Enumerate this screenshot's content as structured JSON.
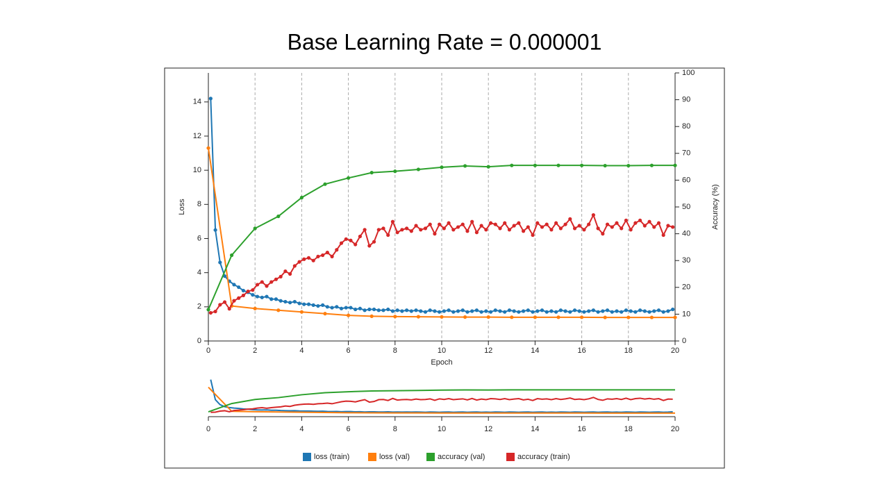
{
  "chart_data": {
    "type": "line",
    "title": "Base Learning Rate = 0.000001",
    "xlabel": "Epoch",
    "ylabel": "Loss",
    "y2label": "Accuracy (%)",
    "xlim": [
      0,
      20
    ],
    "xticks": [
      0,
      2,
      4,
      6,
      8,
      10,
      12,
      14,
      16,
      18,
      20
    ],
    "ylim": [
      0,
      15.7
    ],
    "yticks": [
      0,
      2,
      4,
      6,
      8,
      10,
      12,
      14
    ],
    "y2lim": [
      0,
      100
    ],
    "y2ticks": [
      0,
      10,
      20,
      30,
      40,
      50,
      60,
      70,
      80,
      90,
      100
    ],
    "grid": "x-dashed",
    "legend": "bottom",
    "series": [
      {
        "name": "loss (train)",
        "color": "#1f77b4",
        "x": [
          0.1,
          0.3,
          0.5,
          0.7,
          0.9,
          1.1,
          1.3,
          1.5,
          1.7,
          1.9,
          2.1,
          2.3,
          2.5,
          2.7,
          2.9,
          3.1,
          3.3,
          3.5,
          3.7,
          3.9,
          4.1,
          4.3,
          4.5,
          4.7,
          4.9,
          5.1,
          5.3,
          5.5,
          5.7,
          5.9,
          6.1,
          6.3,
          6.5,
          6.7,
          6.9,
          7.1,
          7.3,
          7.5,
          7.7,
          7.9,
          8.1,
          8.3,
          8.5,
          8.7,
          8.9,
          9.1,
          9.3,
          9.5,
          9.7,
          9.9,
          10.1,
          10.3,
          10.5,
          10.7,
          10.9,
          11.1,
          11.3,
          11.5,
          11.7,
          11.9,
          12.1,
          12.3,
          12.5,
          12.7,
          12.9,
          13.1,
          13.3,
          13.5,
          13.7,
          13.9,
          14.1,
          14.3,
          14.5,
          14.7,
          14.9,
          15.1,
          15.3,
          15.5,
          15.7,
          15.9,
          16.1,
          16.3,
          16.5,
          16.7,
          16.9,
          17.1,
          17.3,
          17.5,
          17.7,
          17.9,
          18.1,
          18.3,
          18.5,
          18.7,
          18.9,
          19.1,
          19.3,
          19.5,
          19.7,
          19.9
        ],
        "values": [
          14.2,
          6.5,
          4.6,
          3.8,
          3.5,
          3.3,
          3.15,
          2.95,
          2.85,
          2.7,
          2.6,
          2.55,
          2.6,
          2.45,
          2.45,
          2.35,
          2.3,
          2.25,
          2.3,
          2.2,
          2.15,
          2.15,
          2.1,
          2.05,
          2.1,
          2.0,
          1.95,
          2.0,
          1.9,
          1.95,
          1.95,
          1.85,
          1.9,
          1.8,
          1.85,
          1.85,
          1.8,
          1.8,
          1.85,
          1.75,
          1.8,
          1.75,
          1.8,
          1.75,
          1.8,
          1.75,
          1.7,
          1.8,
          1.75,
          1.7,
          1.75,
          1.8,
          1.7,
          1.75,
          1.8,
          1.7,
          1.75,
          1.8,
          1.7,
          1.75,
          1.7,
          1.8,
          1.75,
          1.7,
          1.8,
          1.75,
          1.7,
          1.75,
          1.8,
          1.7,
          1.75,
          1.8,
          1.7,
          1.75,
          1.7,
          1.8,
          1.75,
          1.7,
          1.8,
          1.75,
          1.7,
          1.75,
          1.8,
          1.7,
          1.75,
          1.8,
          1.7,
          1.75,
          1.7,
          1.8,
          1.75,
          1.7,
          1.8,
          1.75,
          1.7,
          1.75,
          1.8,
          1.7,
          1.75,
          1.85
        ]
      },
      {
        "name": "loss (val)",
        "color": "#ff7f0e",
        "x": [
          0,
          1,
          2,
          3,
          4,
          5,
          6,
          7,
          8,
          9,
          10,
          11,
          12,
          13,
          14,
          15,
          16,
          17,
          18,
          19,
          20
        ],
        "values": [
          11.3,
          2.05,
          1.9,
          1.8,
          1.7,
          1.6,
          1.5,
          1.45,
          1.43,
          1.42,
          1.41,
          1.4,
          1.4,
          1.39,
          1.39,
          1.39,
          1.39,
          1.38,
          1.38,
          1.38,
          1.38
        ]
      },
      {
        "name": "accuracy (val)",
        "color": "#2ca02c",
        "axis": "y2",
        "x": [
          0,
          1,
          2,
          3,
          4,
          5,
          6,
          7,
          8,
          9,
          10,
          11,
          12,
          13,
          14,
          15,
          16,
          17,
          18,
          19,
          20
        ],
        "values": [
          11.7,
          32,
          42,
          46.5,
          53.5,
          58.5,
          60.8,
          62.8,
          63.3,
          64,
          64.8,
          65.3,
          65,
          65.5,
          65.5,
          65.5,
          65.5,
          65.4,
          65.4,
          65.5,
          65.5
        ]
      },
      {
        "name": "accuracy (train)",
        "color": "#d62728",
        "axis": "y2",
        "x": [
          0.1,
          0.3,
          0.5,
          0.7,
          0.9,
          1.1,
          1.3,
          1.5,
          1.7,
          1.9,
          2.1,
          2.3,
          2.5,
          2.7,
          2.9,
          3.1,
          3.3,
          3.5,
          3.7,
          3.9,
          4.1,
          4.3,
          4.5,
          4.7,
          4.9,
          5.1,
          5.3,
          5.5,
          5.7,
          5.9,
          6.1,
          6.3,
          6.5,
          6.7,
          6.9,
          7.1,
          7.3,
          7.5,
          7.7,
          7.9,
          8.1,
          8.3,
          8.5,
          8.7,
          8.9,
          9.1,
          9.3,
          9.5,
          9.7,
          9.9,
          10.1,
          10.3,
          10.5,
          10.7,
          10.9,
          11.1,
          11.3,
          11.5,
          11.7,
          11.9,
          12.1,
          12.3,
          12.5,
          12.7,
          12.9,
          13.1,
          13.3,
          13.5,
          13.7,
          13.9,
          14.1,
          14.3,
          14.5,
          14.7,
          14.9,
          15.1,
          15.3,
          15.5,
          15.7,
          15.9,
          16.1,
          16.3,
          16.5,
          16.7,
          16.9,
          17.1,
          17.3,
          17.5,
          17.7,
          17.9,
          18.1,
          18.3,
          18.5,
          18.7,
          18.9,
          19.1,
          19.3,
          19.5,
          19.7,
          19.9
        ],
        "values": [
          10.5,
          11,
          13.5,
          14.5,
          12,
          15,
          16,
          17,
          18.5,
          19,
          21,
          22,
          20.5,
          22,
          23,
          24,
          26,
          25,
          28,
          29.5,
          30.5,
          31,
          30,
          31.5,
          32,
          33,
          31.5,
          34,
          36.5,
          38,
          37.5,
          36,
          39,
          41.5,
          35.5,
          37,
          41.5,
          42,
          39.5,
          44.5,
          40.5,
          41.5,
          42,
          41,
          43,
          41.5,
          42,
          43.5,
          40,
          43.5,
          42,
          44,
          41.5,
          42.5,
          43.5,
          41,
          44.5,
          40.5,
          43,
          41.5,
          44,
          43.5,
          42,
          44,
          41.5,
          43,
          44,
          41,
          42.5,
          39.5,
          44,
          42.5,
          43.5,
          41.5,
          44,
          42,
          43.5,
          45.5,
          42,
          43,
          41.5,
          43.5,
          47,
          42,
          40,
          43.5,
          42.5,
          44,
          42,
          45,
          41.5,
          44,
          45,
          43,
          44.5,
          42.5,
          44,
          39.5,
          43,
          42.5
        ]
      }
    ]
  }
}
